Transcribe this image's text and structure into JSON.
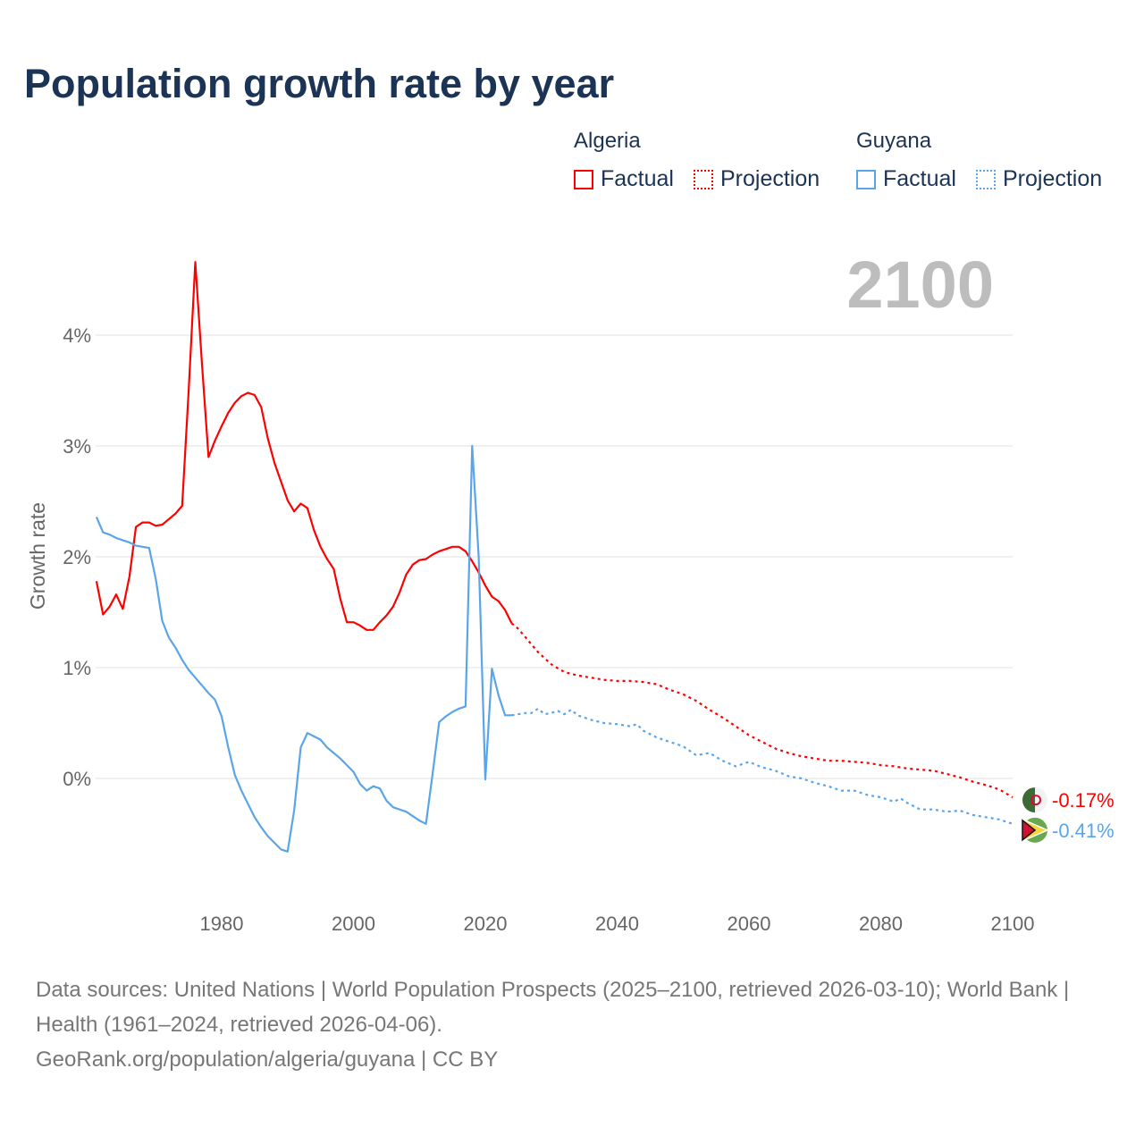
{
  "title": "Population growth rate by year",
  "year_label": "2100",
  "legend": {
    "groups": [
      {
        "name": "Algeria",
        "color": "#ff0000",
        "factual": "Factual",
        "projection": "Projection"
      },
      {
        "name": "Guyana",
        "color": "#5aa5ea",
        "factual": "Factual",
        "projection": "Projection"
      }
    ]
  },
  "footer": {
    "line1": "Data sources: United Nations | World Population Prospects (2025–2100, retrieved 2026-03-10); World Bank | Health (1961–2024, retrieved 2026-04-06).",
    "line2": "GeoRank.org/population/algeria/guyana | CC BY"
  },
  "chart_data": {
    "type": "line",
    "title": "Population growth rate by year",
    "xlabel": "",
    "ylabel": "Growth rate",
    "xlim": [
      1960,
      2100
    ],
    "ylim": [
      -1,
      4.7
    ],
    "xticks": [
      1980,
      2000,
      2020,
      2040,
      2060,
      2080,
      2100
    ],
    "yticks": [
      0,
      1,
      2,
      3,
      4
    ],
    "ytick_labels": [
      "0%",
      "1%",
      "2%",
      "3%",
      "4%"
    ],
    "grid": true,
    "legend": "top-right",
    "series": [
      {
        "name": "Algeria",
        "color": "#ff0000",
        "end_label": "-0.17%",
        "factual": {
          "x": [
            1961,
            1962,
            1963,
            1964,
            1965,
            1966,
            1967,
            1968,
            1969,
            1970,
            1971,
            1972,
            1973,
            1974,
            1975,
            1976,
            1977,
            1978,
            1979,
            1980,
            1981,
            1982,
            1983,
            1984,
            1985,
            1986,
            1987,
            1988,
            1989,
            1990,
            1991,
            1992,
            1993,
            1994,
            1995,
            1996,
            1997,
            1998,
            1999,
            2000,
            2001,
            2002,
            2003,
            2004,
            2005,
            2006,
            2007,
            2008,
            2009,
            2010,
            2011,
            2012,
            2013,
            2014,
            2015,
            2016,
            2017,
            2018,
            2019,
            2020,
            2021,
            2022,
            2023,
            2024
          ],
          "y": [
            1.78,
            1.48,
            1.55,
            1.66,
            1.53,
            1.82,
            2.27,
            2.31,
            2.31,
            2.28,
            2.29,
            2.34,
            2.39,
            2.46,
            3.5,
            4.66,
            3.75,
            2.9,
            3.05,
            3.18,
            3.3,
            3.39,
            3.45,
            3.48,
            3.46,
            3.35,
            3.07,
            2.85,
            2.68,
            2.51,
            2.41,
            2.48,
            2.44,
            2.24,
            2.09,
            1.98,
            1.89,
            1.62,
            1.41,
            1.41,
            1.38,
            1.34,
            1.34,
            1.41,
            1.47,
            1.55,
            1.68,
            1.84,
            1.93,
            1.97,
            1.98,
            2.02,
            2.05,
            2.07,
            2.09,
            2.09,
            2.05,
            1.96,
            1.86,
            1.74,
            1.64,
            1.6,
            1.52,
            1.4
          ]
        },
        "projection": {
          "x": [
            2024,
            2025,
            2026,
            2027,
            2028,
            2030,
            2032,
            2034,
            2036,
            2038,
            2040,
            2042,
            2044,
            2046,
            2048,
            2050,
            2052,
            2054,
            2056,
            2058,
            2060,
            2062,
            2064,
            2066,
            2068,
            2070,
            2072,
            2074,
            2076,
            2078,
            2080,
            2082,
            2084,
            2086,
            2088,
            2090,
            2092,
            2094,
            2096,
            2098,
            2100
          ],
          "y": [
            1.4,
            1.35,
            1.28,
            1.21,
            1.14,
            1.03,
            0.96,
            0.93,
            0.91,
            0.89,
            0.88,
            0.88,
            0.87,
            0.85,
            0.8,
            0.76,
            0.7,
            0.62,
            0.55,
            0.47,
            0.39,
            0.33,
            0.27,
            0.23,
            0.2,
            0.18,
            0.16,
            0.16,
            0.15,
            0.14,
            0.12,
            0.11,
            0.09,
            0.08,
            0.07,
            0.04,
            0.01,
            -0.03,
            -0.06,
            -0.1,
            -0.17
          ]
        }
      },
      {
        "name": "Guyana",
        "color": "#5aa5ea",
        "end_label": "-0.41%",
        "factual": {
          "x": [
            1961,
            1962,
            1963,
            1964,
            1965,
            1966,
            1967,
            1968,
            1969,
            1970,
            1971,
            1972,
            1973,
            1974,
            1975,
            1976,
            1977,
            1978,
            1979,
            1980,
            1981,
            1982,
            1983,
            1984,
            1985,
            1986,
            1987,
            1988,
            1989,
            1990,
            1991,
            1992,
            1993,
            1994,
            1995,
            1996,
            1997,
            1998,
            1999,
            2000,
            2001,
            2002,
            2003,
            2004,
            2005,
            2006,
            2007,
            2008,
            2009,
            2010,
            2011,
            2012,
            2013,
            2014,
            2015,
            2016,
            2017,
            2018,
            2019,
            2020,
            2021,
            2022,
            2023,
            2024
          ],
          "y": [
            2.36,
            2.22,
            2.2,
            2.17,
            2.15,
            2.13,
            2.1,
            2.09,
            2.08,
            1.8,
            1.42,
            1.27,
            1.18,
            1.07,
            0.98,
            0.91,
            0.84,
            0.77,
            0.71,
            0.56,
            0.28,
            0.03,
            -0.11,
            -0.23,
            -0.35,
            -0.44,
            -0.52,
            -0.58,
            -0.64,
            -0.66,
            -0.29,
            0.28,
            0.41,
            0.38,
            0.35,
            0.28,
            0.23,
            0.18,
            0.12,
            0.06,
            -0.05,
            -0.11,
            -0.07,
            -0.09,
            -0.2,
            -0.26,
            -0.28,
            -0.3,
            -0.34,
            -0.38,
            -0.41,
            0.04,
            0.51,
            0.56,
            0.6,
            0.63,
            0.65,
            3.0,
            2.0,
            -0.01,
            0.99,
            0.75,
            0.57,
            0.57
          ]
        },
        "projection": {
          "x": [
            2024,
            2025,
            2026,
            2027,
            2028,
            2029,
            2030,
            2031,
            2032,
            2033,
            2034,
            2036,
            2038,
            2040,
            2042,
            2043,
            2044,
            2046,
            2048,
            2050,
            2052,
            2054,
            2056,
            2058,
            2060,
            2062,
            2064,
            2066,
            2068,
            2070,
            2072,
            2074,
            2076,
            2078,
            2080,
            2082,
            2083,
            2084,
            2086,
            2088,
            2090,
            2092,
            2094,
            2096,
            2098,
            2100
          ],
          "y": [
            0.57,
            0.58,
            0.59,
            0.59,
            0.63,
            0.58,
            0.59,
            0.61,
            0.58,
            0.62,
            0.57,
            0.53,
            0.5,
            0.49,
            0.47,
            0.49,
            0.43,
            0.37,
            0.33,
            0.29,
            0.21,
            0.23,
            0.16,
            0.11,
            0.15,
            0.1,
            0.07,
            0.02,
            0.0,
            -0.04,
            -0.07,
            -0.11,
            -0.11,
            -0.15,
            -0.17,
            -0.21,
            -0.18,
            -0.22,
            -0.28,
            -0.28,
            -0.3,
            -0.29,
            -0.33,
            -0.35,
            -0.37,
            -0.41
          ]
        }
      }
    ]
  }
}
